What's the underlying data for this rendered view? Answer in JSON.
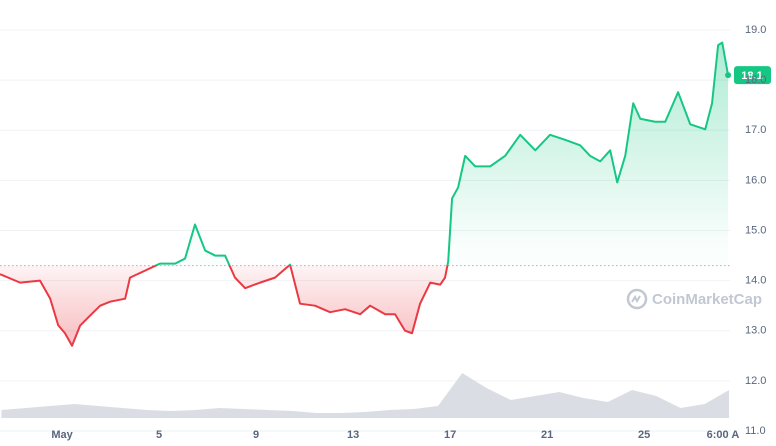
{
  "chart_data": {
    "type": "line",
    "watermark": "CoinMarketCap",
    "current_price": 18.1,
    "baseline": 14.3,
    "up_color": "#16c784",
    "down_color": "#ea3943",
    "xlim": [
      -1.56,
      28.54
    ],
    "ylim": [
      10.7,
      19.6
    ],
    "xticks": [
      {
        "value": 1,
        "label": "May"
      },
      5,
      9,
      13,
      17,
      21,
      25,
      {
        "value": 28.25,
        "label": "6:00 A"
      }
    ],
    "yticks": [
      {
        "value": 11,
        "label": "11.0"
      },
      {
        "value": 12,
        "label": "12.0"
      },
      {
        "value": 13,
        "label": "13.0"
      },
      {
        "value": 14,
        "label": "14.0"
      },
      {
        "value": 15,
        "label": "15.0"
      },
      {
        "value": 16,
        "label": "16.0"
      },
      {
        "value": 17,
        "label": "17.0"
      },
      {
        "value": 18,
        "label": "18.0"
      },
      {
        "value": 19,
        "label": "19.0"
      }
    ],
    "grid": true,
    "x": [
      -1.56,
      -0.73,
      0.09,
      0.51,
      0.84,
      1.12,
      1.41,
      1.74,
      2.15,
      2.57,
      2.98,
      3.6,
      3.8,
      4.42,
      5.04,
      5.66,
      6.07,
      6.48,
      6.9,
      7.31,
      7.72,
      8.13,
      8.55,
      9.16,
      9.78,
      10.4,
      10.81,
      11.43,
      12.05,
      12.67,
      13.29,
      13.7,
      14.32,
      14.73,
      15.14,
      15.43,
      15.76,
      16.18,
      16.59,
      16.79,
      16.92,
      17.08,
      17.33,
      17.62,
      18.03,
      18.65,
      19.27,
      19.89,
      20.51,
      21.12,
      21.74,
      22.36,
      22.77,
      23.19,
      23.6,
      23.89,
      24.22,
      24.55,
      24.84,
      25.45,
      25.87,
      26.4,
      26.9,
      27.52,
      27.8,
      28.05,
      28.22,
      28.46
    ],
    "values": [
      14.13,
      13.96,
      14.0,
      13.64,
      13.11,
      12.95,
      12.7,
      13.1,
      13.3,
      13.5,
      13.58,
      13.64,
      14.06,
      14.2,
      14.34,
      14.34,
      14.44,
      15.12,
      14.6,
      14.5,
      14.5,
      14.06,
      13.85,
      13.96,
      14.06,
      14.32,
      13.54,
      13.5,
      13.37,
      13.43,
      13.33,
      13.5,
      13.33,
      13.33,
      13.0,
      12.95,
      13.54,
      13.96,
      13.92,
      14.06,
      14.38,
      15.64,
      15.86,
      16.49,
      16.28,
      16.28,
      16.49,
      16.91,
      16.6,
      16.91,
      16.81,
      16.7,
      16.49,
      16.38,
      16.6,
      15.96,
      16.49,
      17.54,
      17.23,
      17.17,
      17.17,
      17.76,
      17.12,
      17.02,
      17.54,
      18.7,
      18.75,
      18.1
    ],
    "volume": {
      "color": "#d1d6dd",
      "ylim": [
        0,
        60
      ],
      "x": [
        -1.5,
        -0.5,
        0.5,
        1.5,
        2.5,
        3.5,
        4.5,
        5.5,
        6.5,
        7.5,
        8.5,
        9.5,
        10.5,
        11.5,
        12.5,
        13.5,
        14.5,
        15.5,
        16.5,
        17.5,
        18.5,
        19.5,
        20.5,
        21.5,
        22.5,
        23.5,
        24.5,
        25.5,
        26.5,
        27.5,
        28.5
      ],
      "values": [
        8,
        10,
        12,
        14,
        12,
        10,
        8,
        7,
        8,
        10,
        9,
        8,
        7,
        5,
        5,
        6,
        8,
        9,
        12,
        45,
        30,
        18,
        22,
        26,
        20,
        16,
        28,
        22,
        10,
        14,
        28
      ]
    }
  }
}
